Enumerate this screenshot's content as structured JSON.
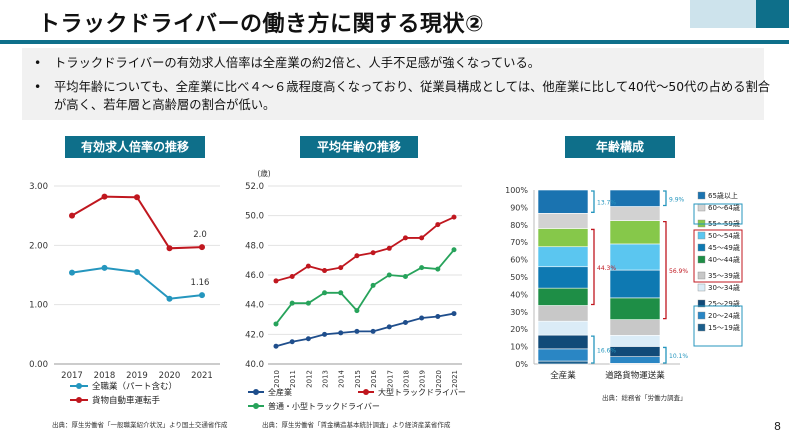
{
  "slide": {
    "title": "トラックドライバーの働き方に関する現状②",
    "bullets": [
      "トラックドライバーの有効求人倍率は全産業の約2倍と、人手不足感が強くなっている。",
      "平均年齢についても、全産業に比べ４～６歳程度高くなっており、従業員構成としては、他産業に比して40代～50代の占める割合が高く、若年層と高齢層の割合が低い。"
    ],
    "page_number": "8"
  },
  "panels": {
    "p1_header": "有効求人倍率の推移",
    "p2_header": "平均年齢の推移",
    "p3_header": "年齢構成",
    "p1_source": "出典：厚生労働省「一般職業紹介状況」より国土交通省作成",
    "p2_source": "出典：厚生労働省「賃金構造基本統計調査」より経済産業省作成",
    "p3_source": "出典：総務省「労働力調査」"
  },
  "colors": {
    "accent": "#0e6f8a",
    "red": "#c0171f",
    "blue": "#2596be",
    "green": "#27a35b",
    "navy": "#1f4e8c"
  },
  "chart_data": [
    {
      "type": "line",
      "title": "有効求人倍率の推移",
      "categories": [
        "2017",
        "2018",
        "2019",
        "2020",
        "2021"
      ],
      "ylim": [
        0,
        3
      ],
      "yticks": [
        "0.00",
        "1.00",
        "2.00",
        "3.00"
      ],
      "series": [
        {
          "name": "全職業（パート含む）",
          "color": "#2596be",
          "values": [
            1.54,
            1.62,
            1.55,
            1.1,
            1.16
          ]
        },
        {
          "name": "貨物自動車運転手",
          "color": "#c0171f",
          "values": [
            2.5,
            2.82,
            2.81,
            1.95,
            1.97
          ]
        }
      ],
      "annotations": [
        {
          "series": 1,
          "index": 4,
          "label": "2.0"
        },
        {
          "series": 0,
          "index": 4,
          "label": "1.16"
        }
      ]
    },
    {
      "type": "line",
      "title": "平均年齢の推移",
      "ylabel": "(歳)",
      "categories": [
        "2010",
        "2011",
        "2012",
        "2013",
        "2014",
        "2015",
        "2016",
        "2017",
        "2018",
        "2019",
        "2020",
        "2021"
      ],
      "ylim": [
        40,
        52
      ],
      "yticks": [
        "40.0",
        "42.0",
        "44.0",
        "46.0",
        "48.0",
        "50.0",
        "52.0"
      ],
      "series": [
        {
          "name": "全産業",
          "color": "#1f4e8c",
          "values": [
            41.2,
            41.5,
            41.7,
            42.0,
            42.1,
            42.2,
            42.2,
            42.5,
            42.8,
            43.1,
            43.2,
            43.4
          ]
        },
        {
          "name": "大型トラックドライバー",
          "color": "#c0171f",
          "values": [
            45.6,
            45.9,
            46.6,
            46.3,
            46.5,
            47.3,
            47.5,
            47.8,
            48.5,
            48.5,
            49.4,
            49.9
          ]
        },
        {
          "name": "普通・小型トラックドライバー",
          "color": "#27a35b",
          "values": [
            42.7,
            44.1,
            44.1,
            44.8,
            44.8,
            43.6,
            45.3,
            46.0,
            45.9,
            46.5,
            46.4,
            47.7
          ]
        }
      ]
    },
    {
      "type": "bar",
      "stacked": true,
      "title": "年齢構成",
      "categories": [
        "全産業",
        "道路貨物運送業"
      ],
      "ylim": [
        0,
        100
      ],
      "yticks": [
        "0%",
        "10%",
        "20%",
        "30%",
        "40%",
        "50%",
        "60%",
        "70%",
        "80%",
        "90%",
        "100%"
      ],
      "series": [
        {
          "name": "15～19歳",
          "color": "#1b5e8c",
          "values": [
            1.7,
            0.4
          ]
        },
        {
          "name": "20～24歳",
          "color": "#2a86c4",
          "values": [
            7.0,
            3.8
          ]
        },
        {
          "name": "25～29歳",
          "color": "#114a78",
          "values": [
            7.9,
            5.9
          ]
        },
        {
          "name": "30～34歳",
          "color": "#dbecf7",
          "values": [
            8.0,
            6.4
          ]
        },
        {
          "name": "35～39歳",
          "color": "#c8c8c8",
          "values": [
            9.0,
            9.0
          ]
        },
        {
          "name": "40～44歳",
          "color": "#1e8e46",
          "values": [
            10.0,
            12.5
          ]
        },
        {
          "name": "45～49歳",
          "color": "#0e79b2",
          "values": [
            12.3,
            16.0
          ]
        },
        {
          "name": "50～54歳",
          "color": "#5bc6f0",
          "values": [
            11.5,
            15.0
          ]
        },
        {
          "name": "55～59歳",
          "color": "#86c84a",
          "values": [
            10.5,
            13.4
          ]
        },
        {
          "name": "60～64歳",
          "color": "#d2d2d2",
          "values": [
            8.7,
            8.1
          ]
        },
        {
          "name": "65歳以上",
          "color": "#1a73b0",
          "values": [
            13.4,
            9.5
          ]
        }
      ],
      "bracket_labels": [
        {
          "bar": 0,
          "label": "13.7%"
        },
        {
          "bar": 0,
          "label": "44.3%"
        },
        {
          "bar": 0,
          "label": "16.6%"
        },
        {
          "bar": 1,
          "label": "9.9%"
        },
        {
          "bar": 1,
          "label": "56.9%"
        },
        {
          "bar": 1,
          "label": "10.1%"
        }
      ]
    }
  ]
}
